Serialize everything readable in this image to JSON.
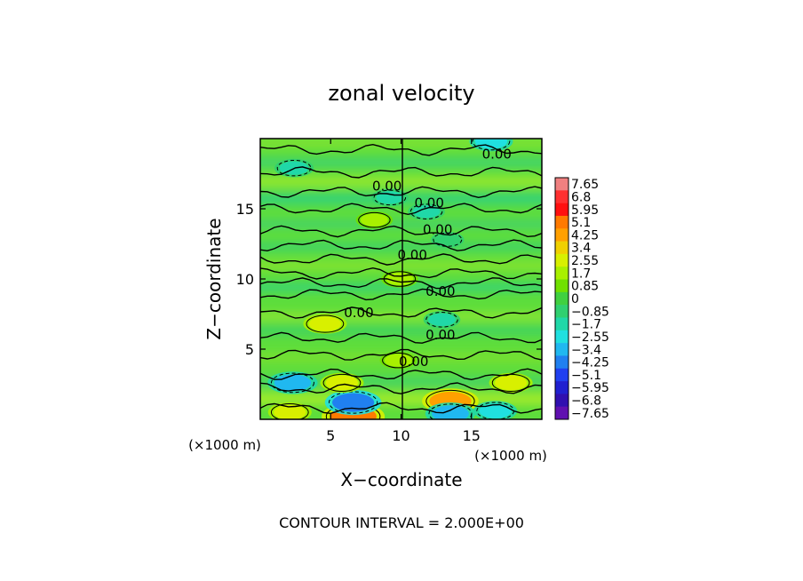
{
  "chart_data": {
    "type": "heatmap",
    "title": "zonal velocity",
    "xlabel": "X−coordinate",
    "ylabel": "Z−coordinate",
    "x_unit": "(×1000 m)",
    "z_unit": "(×1000 m)",
    "xlim": [
      0,
      20
    ],
    "ylim": [
      0,
      20
    ],
    "x_ticks": [
      5,
      10,
      15
    ],
    "y_ticks": [
      5,
      10,
      15
    ],
    "x_tick_labels": [
      "5",
      "10",
      "15"
    ],
    "y_tick_labels": [
      "5",
      "10",
      "15"
    ],
    "colorbar_levels": [
      7.65,
      6.8,
      5.95,
      5.1,
      4.25,
      3.4,
      2.55,
      1.7,
      0.85,
      0,
      -0.85,
      -1.7,
      -2.55,
      -3.4,
      -4.25,
      -5.1,
      -5.95,
      -6.8,
      -7.65
    ],
    "colorbar_labels": [
      "7.65",
      "6.8",
      "5.95",
      "5.1",
      "4.25",
      "3.4",
      "2.55",
      "1.7",
      "0.85",
      "0",
      "−0.85",
      "−1.7",
      "−2.55",
      "−3.4",
      "−4.25",
      "−5.1",
      "−5.95",
      "−6.8",
      "−7.65"
    ],
    "colorbar_colors": [
      "#f08080",
      "#ff3030",
      "#ff1010",
      "#ff7a00",
      "#ffa000",
      "#f0d000",
      "#d8f000",
      "#a8f000",
      "#70e000",
      "#40d040",
      "#30d070",
      "#20d8a8",
      "#20e0e0",
      "#20b8f0",
      "#2080f0",
      "#2040f0",
      "#2020d0",
      "#3010b0",
      "#6010b0"
    ],
    "contour_labels": [
      {
        "text": "0.00",
        "x": 16.8,
        "z": 18.9
      },
      {
        "text": "0.00",
        "x": 9.0,
        "z": 16.6
      },
      {
        "text": "0.00",
        "x": 12.0,
        "z": 15.4
      },
      {
        "text": "0.00",
        "x": 12.6,
        "z": 13.5
      },
      {
        "text": "0.00",
        "x": 10.8,
        "z": 11.7
      },
      {
        "text": "0.00",
        "x": 12.8,
        "z": 9.1
      },
      {
        "text": "0.00",
        "x": 7.0,
        "z": 7.6
      },
      {
        "text": "0.00",
        "x": 12.8,
        "z": 6.0
      },
      {
        "text": "0.00",
        "x": 10.9,
        "z": 4.1
      }
    ],
    "features": [
      {
        "x": 6.6,
        "z": 0.2,
        "value": 5.1
      },
      {
        "x": 6.6,
        "z": 1.2,
        "value": -4.25
      },
      {
        "x": 2.3,
        "z": 2.6,
        "value": -3.4
      },
      {
        "x": 13.5,
        "z": 1.3,
        "value": 4.25
      },
      {
        "x": 13.5,
        "z": 0.4,
        "value": -3.4
      },
      {
        "x": 17.8,
        "z": 2.6,
        "value": 2.55
      },
      {
        "x": 2.1,
        "z": 0.5,
        "value": 2.55
      },
      {
        "x": 5.8,
        "z": 2.6,
        "value": 2.55
      },
      {
        "x": 16.7,
        "z": 0.6,
        "value": -2.55
      },
      {
        "x": 9.8,
        "z": 4.2,
        "value": 1.7
      },
      {
        "x": 4.6,
        "z": 6.8,
        "value": 2.55
      },
      {
        "x": 12.9,
        "z": 7.1,
        "value": -1.7
      },
      {
        "x": 9.9,
        "z": 10.0,
        "value": 1.7
      },
      {
        "x": 13.3,
        "z": 12.8,
        "value": -1.2
      },
      {
        "x": 8.1,
        "z": 14.2,
        "value": 1.7
      },
      {
        "x": 11.8,
        "z": 14.8,
        "value": -1.7
      },
      {
        "x": 2.4,
        "z": 17.9,
        "value": -2.0
      },
      {
        "x": 9.2,
        "z": 15.8,
        "value": -1.7
      },
      {
        "x": 16.4,
        "z": 19.8,
        "value": -2.55
      }
    ]
  },
  "footer": {
    "contour_interval": "CONTOUR INTERVAL = 2.000E+00"
  }
}
